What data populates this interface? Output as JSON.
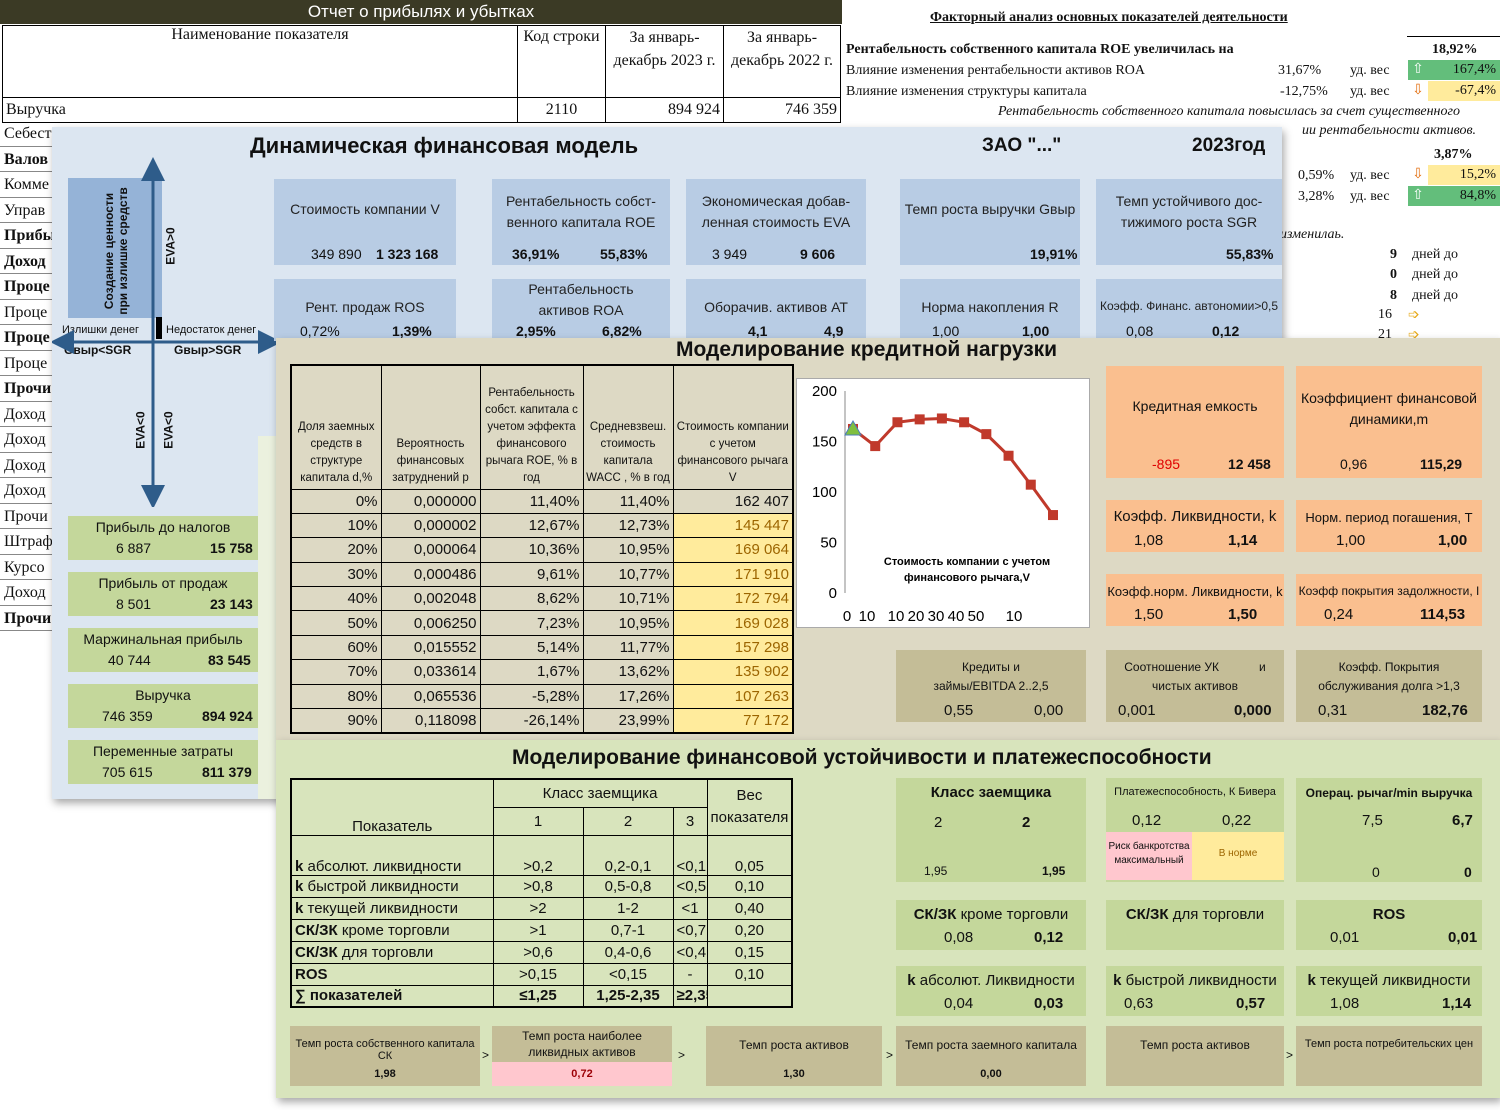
{
  "pl": {
    "title": "Отчет о прибылях и убытках",
    "col_name": "Наименование показателя",
    "col_code": "Код строки",
    "col_2023": "За январь-декабрь 2023 г.",
    "col_2022": "За январь-декабрь 2022 г.",
    "revenue": {
      "label": "Выручка",
      "code": "2110",
      "v2023": "894 924",
      "v2022": "746 359"
    },
    "row_labels": [
      "Себест",
      "Валов",
      "Комме",
      "Управ",
      "Прибы",
      "Доход",
      "Проце",
      "Проце",
      "Проце",
      "Проце",
      "Прочи",
      "Доход",
      "Доход",
      "Доход",
      "Доход",
      "Прочи",
      "Штраф",
      "Курсо",
      "Доход",
      "Прочи"
    ]
  },
  "fa": {
    "title": "Факторный анализ основных показателей деятельности",
    "roe_line": "Рентабельность собственного капитала ROE увеличилась на",
    "roe_value": "18,92%",
    "line1": {
      "label": "Влияние изменения рентабельности активов ROA",
      "v": "31,67%",
      "unit": "уд. вес",
      "share": "167,4%"
    },
    "line2": {
      "label": "Влияние изменения структуры капитала",
      "v": "-12,75%",
      "unit": "уд. вес",
      "share": "-67,4%"
    },
    "note1": "Рентабельность собственного капитала повысилась за счет существенного",
    "note2": "ии рентабельности активов.",
    "val3": "3,87%",
    "line3": {
      "v": "0,59%",
      "unit": "уд. вес",
      "share": "15,2%"
    },
    "line4": {
      "v": "3,28%",
      "unit": "уд. вес",
      "share": "84,8%"
    },
    "note3": "изменилаь.",
    "days": [
      {
        "n": "9",
        "t": "дней до"
      },
      {
        "n": "0",
        "t": "дней до"
      },
      {
        "n": "8",
        "t": "дней до"
      },
      {
        "n": "16",
        "t": ""
      },
      {
        "n": "21",
        "t": ""
      }
    ]
  },
  "dm": {
    "title": "Динамическая  финансовая модель",
    "company": "ЗАО \"...\"",
    "year": "2023год",
    "axis_vertical": "Создание ценности при излишке средств",
    "eva_pos": "EVA>0",
    "eva_neg1": "EVA<0",
    "eva_neg2": "EVA<0",
    "surplus": "Излишки денег",
    "deficit": "Недостаток денег",
    "gv_lt": "Gвыр<SGR",
    "gv_gt": "Gвыр>SGR",
    "boxes": [
      {
        "label": "Стоимость компании V",
        "v1": "349 890",
        "v2": "1 323 168"
      },
      {
        "label": "Рентабельность собст-венного капитала ROE",
        "v1": "36,91%",
        "v2": "55,83%"
      },
      {
        "label": "Экономическая добав-ленная стоимость EVA",
        "v1": "3 949",
        "v2": "9 606"
      },
      {
        "label": "Темп роста выручки Gвыр",
        "v1": "",
        "v2": "19,91%"
      },
      {
        "label": "Темп устойчивого дос-тижимого роста SGR",
        "v1": "",
        "v2": "55,83%"
      }
    ],
    "boxes2": [
      {
        "label": "Рент. продаж ROS",
        "v1": "0,72%",
        "v2": "1,39%"
      },
      {
        "label": "Рентабельность активов ROA",
        "v1": "2,95%",
        "v2": "6,82%"
      },
      {
        "label": "Оборачив. активов AT",
        "v1": "4,1",
        "v2": "4,9"
      },
      {
        "label": "Норма накопления R",
        "v1": "1,00",
        "v2": "1,00"
      },
      {
        "label": "Коэфф. Финанс. автономии>0,5",
        "v1": "0,08",
        "v2": "0,12"
      }
    ],
    "left_boxes": [
      {
        "label": "Прибыль до налогов",
        "v1": "6 887",
        "v2": "15 758"
      },
      {
        "label": "Прибыль от продаж",
        "v1": "8 501",
        "v2": "23 143"
      },
      {
        "label": "Маржинальная прибыль",
        "v1": "40 744",
        "v2": "83 545"
      },
      {
        "label": "Выручка",
        "v1": "746 359",
        "v2": "894 924"
      },
      {
        "label": "Переменные затраты",
        "v1": "705 615",
        "v2": "811 379"
      }
    ]
  },
  "cm": {
    "title": "Моделирование кредитной нагрузки",
    "headers": [
      "Доля заемных средств в структуре капитала d,%",
      "Вероятность финансовых затруднений p",
      "Рентабельность собст. капитала с учетом эффекта финансового рычага ROE, % в год",
      "Средневзвеш. стоимость капитала WACC , % в год",
      "Стоимость компании с учетом финансового рычага V"
    ],
    "rows": [
      [
        "0%",
        "0,000000",
        "11,40%",
        "11,40%",
        "162 407"
      ],
      [
        "10%",
        "0,000002",
        "12,67%",
        "12,73%",
        "145 447"
      ],
      [
        "20%",
        "0,000064",
        "10,36%",
        "10,95%",
        "169 064"
      ],
      [
        "30%",
        "0,000486",
        "9,61%",
        "10,77%",
        "171 910"
      ],
      [
        "40%",
        "0,002048",
        "8,62%",
        "10,71%",
        "172 794"
      ],
      [
        "50%",
        "0,006250",
        "7,23%",
        "10,95%",
        "169 028"
      ],
      [
        "60%",
        "0,015552",
        "5,14%",
        "11,77%",
        "157 298"
      ],
      [
        "70%",
        "0,033614",
        "1,67%",
        "13,62%",
        "135 902"
      ],
      [
        "80%",
        "0,065536",
        "-5,28%",
        "17,26%",
        "107 263"
      ],
      [
        "90%",
        "0,118098",
        "-26,14%",
        "23,99%",
        "77 172"
      ]
    ],
    "orange": [
      {
        "label": "Кредитная емкость",
        "v1": "-895",
        "v2": "12 458"
      },
      {
        "label": "Коэффициент финансовой динамики,m",
        "v1": "0,96",
        "v2": "115,29"
      },
      {
        "label": "Коэфф. Ликвидности, k",
        "v1": "1,08",
        "v2": "1,14"
      },
      {
        "label": "Норм. период погашения, T",
        "v1": "1,00",
        "v2": "1,00"
      },
      {
        "label": "Коэфф.норм. Ликвидности, k",
        "v1": "1,50",
        "v2": "1,50"
      },
      {
        "label": "Коэфф покрытия задолжности, I",
        "v1": "0,24",
        "v2": "114,53"
      }
    ],
    "tan": [
      {
        "label": "Кредиты и займы/EBITDA 2..2,5",
        "v1": "0,55",
        "v2": "0,00"
      },
      {
        "label": "Соотношение УК            и чистых активов",
        "v1": "0,001",
        "v2": "0,000"
      },
      {
        "label": "Коэфф. Покрытия обслуживания долга >1,3",
        "v1": "0,31",
        "v2": "182,76"
      }
    ]
  },
  "chart_data": {
    "type": "line",
    "title": "Стоимость компании с учетом финансового рычага,V",
    "x_tick_labels": [
      "0",
      "10",
      "10",
      "20",
      "30",
      "40",
      "50",
      "10"
    ],
    "x": [
      0,
      10,
      20,
      30,
      40,
      50,
      60,
      70,
      80,
      90
    ],
    "values": [
      162.407,
      145.447,
      169.064,
      171.91,
      172.794,
      169.028,
      157.298,
      135.902,
      107.263,
      77.172
    ],
    "ylim": [
      0,
      200
    ],
    "yticks": [
      "0",
      "50",
      "100",
      "150",
      "200"
    ],
    "colors": {
      "line": "#c0392b",
      "first_point": "#7fbf3f"
    }
  },
  "sm": {
    "title": "Моделирование финансовой устойчивости и платежеспособности",
    "col_indicator": "Показатель",
    "col_class": "Класс заемщика",
    "col_weight": "Вес показателя",
    "class_nums": [
      "1",
      "2",
      "3"
    ],
    "rows": [
      {
        "b": "k",
        "label": " абсолют. ликвидности",
        "c1": ">0,2",
        "c2": "0,2-0,1",
        "c3": "<0,1",
        "w": "0,05"
      },
      {
        "b": "k",
        "label": " быстрой ликвидности",
        "c1": ">0,8",
        "c2": "0,5-0,8",
        "c3": "<0,5",
        "w": "0,10"
      },
      {
        "b": "k",
        "label": " текущей ликвидности",
        "c1": ">2",
        "c2": "1-2",
        "c3": "<1",
        "w": "0,40"
      },
      {
        "b": "СК/ЗК",
        "label": " кроме торговли",
        "c1": ">1",
        "c2": "0,7-1",
        "c3": "<0,7",
        "w": "0,20"
      },
      {
        "b": "СК/ЗК",
        "label": " для торговли",
        "c1": ">0,6",
        "c2": "0,4-0,6",
        "c3": "<0,4",
        "w": "0,15"
      },
      {
        "b": "ROS",
        "label": "",
        "c1": ">0,15",
        "c2": "<0,15",
        "c3": "-",
        "w": "0,10"
      },
      {
        "b": "∑ показателей",
        "label": "",
        "c1": "≤1,25",
        "c2": "1,25-2,35",
        "c3": "≥2,35",
        "w": ""
      }
    ],
    "class_box": {
      "label": "Класс заемщика",
      "v1": "2",
      "v2": "2",
      "s1": "1,95",
      "s2": "1,95"
    },
    "pay_box": {
      "label": "Платежеспособность, К Бивера",
      "v1": "0,12",
      "v2": "0,22",
      "risk": "Риск банкротства максимальный",
      "norm": "В норме"
    },
    "lever_box": {
      "label": "Операц. рычаг/min выручка",
      "v1": "7,5",
      "v2": "6,7",
      "s1": "0",
      "s2": "0"
    },
    "small": [
      {
        "label": "СК/ЗК кроме торговли",
        "v1": "0,08",
        "v2": "0,12"
      },
      {
        "label": "СК/ЗК для торговли",
        "v1": "",
        "v2": ""
      },
      {
        "label": "ROS",
        "v1": "0,01",
        "v2": "0,01"
      },
      {
        "label": "k абсолют. Ликвидности",
        "v1": "0,04",
        "v2": "0,03"
      },
      {
        "label": "k быстрой ликвидности",
        "v1": "0,63",
        "v2": "0,57"
      },
      {
        "label": "k текущей ликвидности",
        "v1": "1,08",
        "v2": "1,14"
      }
    ],
    "growth": [
      {
        "label": "Темп роста собственного капитала СК",
        "v": "1,98"
      },
      {
        "label": "Темп роста наиболее ликвидных активов",
        "v": "0,72"
      },
      {
        "label": "Темп роста активов",
        "v": "1,30"
      },
      {
        "label": "Темп роста заемного капитала",
        "v": "0,00"
      },
      {
        "label": "Темп роста активов",
        "v": ""
      },
      {
        "label": "Темп роста потребительских цен",
        "v": ""
      }
    ],
    "gt": ">"
  },
  "colors": {
    "blue_panel": "#dce6f1",
    "blue_box": "#b8cce4",
    "green_box": "#c4d79b",
    "orange_box": "#fabf8f",
    "tan_box": "#c4bd97",
    "arrow": "#2e5c8a"
  }
}
